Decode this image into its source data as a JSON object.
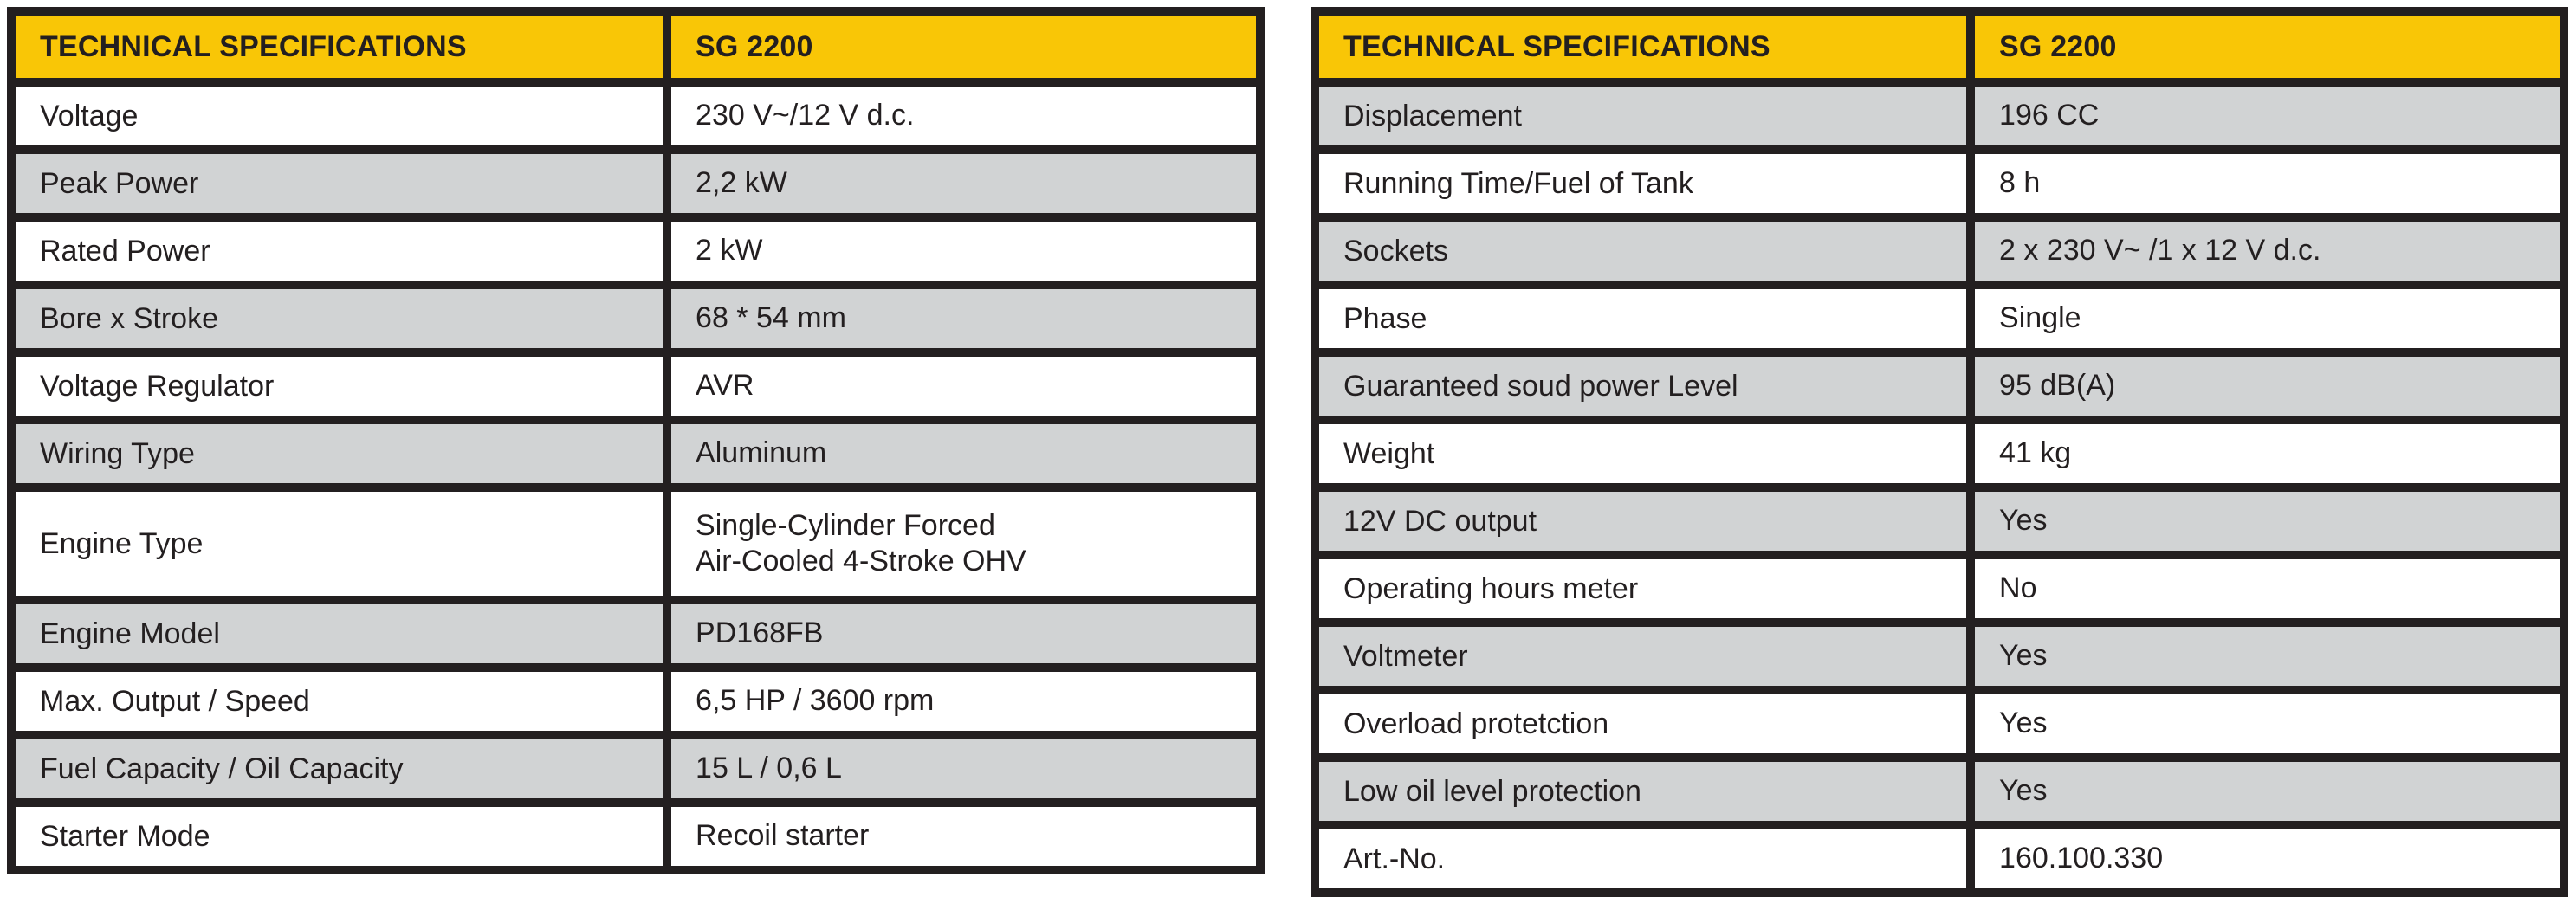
{
  "colors": {
    "header_yellow": "#F9C606",
    "row_gray": "#D1D3D4",
    "border_black": "#231F20",
    "row_white": "#FFFFFF"
  },
  "left_table": {
    "header": {
      "col1": "TECHNICAL SPECIFICATIONS",
      "col2": "SG 2200"
    },
    "rows": [
      {
        "label": "Voltage",
        "value": "230 V~/12 V d.c.",
        "shaded": false
      },
      {
        "label": "Peak Power",
        "value": "2,2 kW",
        "shaded": true
      },
      {
        "label": "Rated Power",
        "value": "2 kW",
        "shaded": false
      },
      {
        "label": "Bore x Stroke",
        "value": "68 * 54 mm",
        "shaded": true
      },
      {
        "label": "Voltage Regulator",
        "value": "AVR",
        "shaded": false
      },
      {
        "label": "Wiring Type",
        "value": "Aluminum",
        "shaded": true
      },
      {
        "label": "Engine Type",
        "value": "Single-Cylinder Forced\nAir-Cooled 4-Stroke OHV",
        "shaded": false,
        "tall": true
      },
      {
        "label": "Engine Model",
        "value": "PD168FB",
        "shaded": true
      },
      {
        "label": "Max. Output / Speed",
        "value": "6,5 HP / 3600 rpm",
        "shaded": false
      },
      {
        "label": "Fuel Capacity / Oil Capacity",
        "value": "15 L / 0,6 L",
        "shaded": true
      },
      {
        "label": "Starter Mode",
        "value": "Recoil starter",
        "shaded": false
      }
    ]
  },
  "right_table": {
    "header": {
      "col1": "TECHNICAL SPECIFICATIONS",
      "col2": "SG 2200"
    },
    "rows": [
      {
        "label": "Displacement",
        "value": "196 CC",
        "shaded": true
      },
      {
        "label": "Running Time/Fuel of Tank",
        "value": "8 h",
        "shaded": false
      },
      {
        "label": "Sockets",
        "value": "2 x 230 V~ /1 x 12 V d.c.",
        "shaded": true
      },
      {
        "label": "Phase",
        "value": "Single",
        "shaded": false
      },
      {
        "label": "Guaranteed soud power Level",
        "value": "95 dB(A)",
        "shaded": true
      },
      {
        "label": "Weight",
        "value": "41 kg",
        "shaded": false
      },
      {
        "label": "12V DC output",
        "value": "Yes",
        "shaded": true
      },
      {
        "label": "Operating hours meter",
        "value": "No",
        "shaded": false
      },
      {
        "label": "Voltmeter",
        "value": "Yes",
        "shaded": true
      },
      {
        "label": "Overload protetction",
        "value": "Yes",
        "shaded": false
      },
      {
        "label": "Low oil level protection",
        "value": "Yes",
        "shaded": true
      },
      {
        "label": "Art.-No.",
        "value": "160.100.330",
        "shaded": false
      }
    ]
  }
}
